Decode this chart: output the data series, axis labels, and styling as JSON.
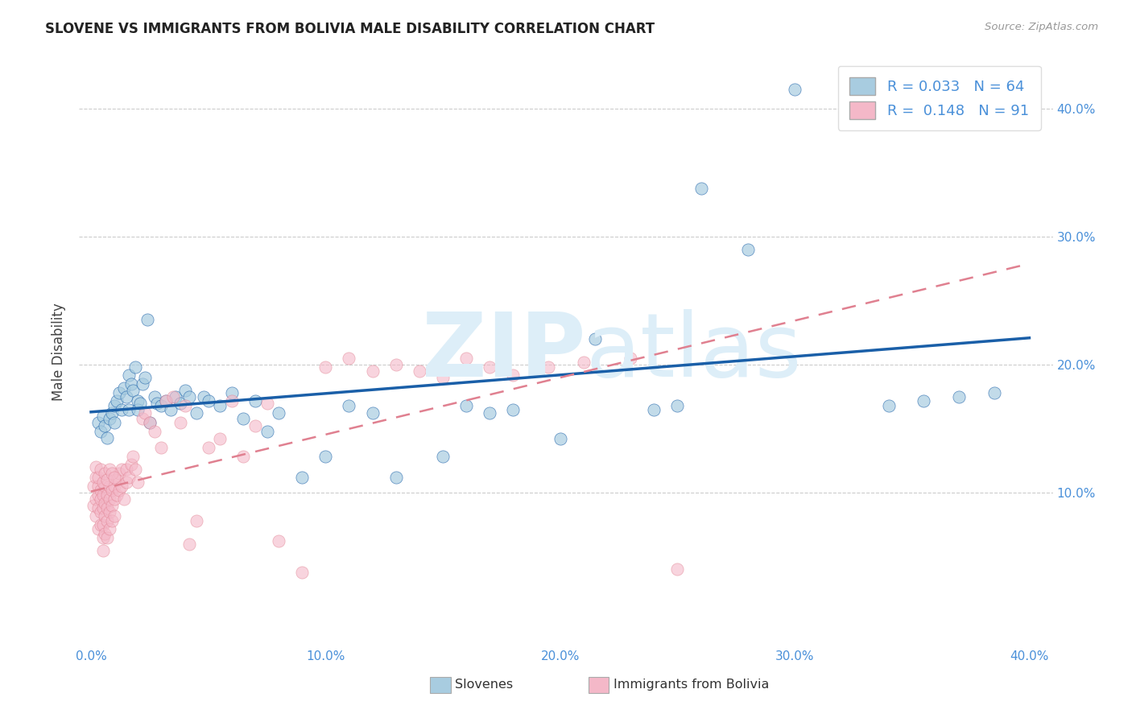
{
  "title": "SLOVENE VS IMMIGRANTS FROM BOLIVIA MALE DISABILITY CORRELATION CHART",
  "source": "Source: ZipAtlas.com",
  "ylabel": "Male Disability",
  "xlim": [
    -0.005,
    0.41
  ],
  "ylim": [
    -0.02,
    0.44
  ],
  "x_ticks": [
    0.0,
    0.1,
    0.2,
    0.3,
    0.4
  ],
  "y_ticks": [
    0.1,
    0.2,
    0.3,
    0.4
  ],
  "x_tick_labels": [
    "0.0%",
    "10.0%",
    "20.0%",
    "30.0%",
    "40.0%"
  ],
  "y_tick_labels": [
    "10.0%",
    "20.0%",
    "30.0%",
    "40.0%"
  ],
  "R_slovene": 0.033,
  "N_slovene": 64,
  "R_bolivia": 0.148,
  "N_bolivia": 91,
  "color_slovene": "#a8cce0",
  "color_bolivia": "#f4b8c8",
  "color_slovene_line": "#1a5fa8",
  "color_bolivia_line": "#e08090",
  "slovene_x": [
    0.003,
    0.004,
    0.005,
    0.006,
    0.007,
    0.008,
    0.009,
    0.01,
    0.01,
    0.011,
    0.012,
    0.013,
    0.014,
    0.015,
    0.016,
    0.016,
    0.017,
    0.018,
    0.019,
    0.02,
    0.02,
    0.021,
    0.022,
    0.023,
    0.024,
    0.025,
    0.027,
    0.028,
    0.03,
    0.032,
    0.034,
    0.036,
    0.038,
    0.04,
    0.042,
    0.045,
    0.048,
    0.05,
    0.055,
    0.06,
    0.065,
    0.07,
    0.075,
    0.08,
    0.09,
    0.1,
    0.11,
    0.12,
    0.13,
    0.15,
    0.16,
    0.17,
    0.18,
    0.2,
    0.24,
    0.26,
    0.28,
    0.3,
    0.34,
    0.355,
    0.37,
    0.385,
    0.215,
    0.25
  ],
  "slovene_y": [
    0.155,
    0.148,
    0.16,
    0.152,
    0.143,
    0.158,
    0.162,
    0.155,
    0.168,
    0.172,
    0.178,
    0.165,
    0.182,
    0.175,
    0.165,
    0.192,
    0.185,
    0.18,
    0.198,
    0.172,
    0.165,
    0.17,
    0.185,
    0.19,
    0.235,
    0.155,
    0.175,
    0.17,
    0.168,
    0.172,
    0.165,
    0.175,
    0.17,
    0.18,
    0.175,
    0.162,
    0.175,
    0.172,
    0.168,
    0.178,
    0.158,
    0.172,
    0.148,
    0.162,
    0.112,
    0.128,
    0.168,
    0.162,
    0.112,
    0.128,
    0.168,
    0.162,
    0.165,
    0.142,
    0.165,
    0.338,
    0.29,
    0.415,
    0.168,
    0.172,
    0.175,
    0.178,
    0.22,
    0.168
  ],
  "bolivia_x": [
    0.001,
    0.001,
    0.002,
    0.002,
    0.002,
    0.003,
    0.003,
    0.003,
    0.003,
    0.004,
    0.004,
    0.004,
    0.004,
    0.005,
    0.005,
    0.005,
    0.005,
    0.005,
    0.006,
    0.006,
    0.006,
    0.006,
    0.007,
    0.007,
    0.007,
    0.007,
    0.008,
    0.008,
    0.008,
    0.008,
    0.009,
    0.009,
    0.009,
    0.01,
    0.01,
    0.01,
    0.011,
    0.011,
    0.012,
    0.012,
    0.013,
    0.013,
    0.014,
    0.015,
    0.015,
    0.016,
    0.017,
    0.018,
    0.019,
    0.02,
    0.022,
    0.023,
    0.025,
    0.027,
    0.03,
    0.032,
    0.035,
    0.038,
    0.04,
    0.042,
    0.045,
    0.05,
    0.055,
    0.06,
    0.065,
    0.07,
    0.075,
    0.08,
    0.09,
    0.1,
    0.11,
    0.12,
    0.13,
    0.14,
    0.15,
    0.16,
    0.17,
    0.18,
    0.195,
    0.21,
    0.002,
    0.003,
    0.004,
    0.005,
    0.006,
    0.007,
    0.008,
    0.009,
    0.01,
    0.23,
    0.25
  ],
  "bolivia_y": [
    0.105,
    0.09,
    0.112,
    0.095,
    0.082,
    0.098,
    0.105,
    0.088,
    0.072,
    0.102,
    0.095,
    0.085,
    0.075,
    0.098,
    0.088,
    0.075,
    0.065,
    0.055,
    0.105,
    0.092,
    0.082,
    0.068,
    0.098,
    0.088,
    0.078,
    0.065,
    0.105,
    0.095,
    0.085,
    0.072,
    0.102,
    0.09,
    0.078,
    0.105,
    0.095,
    0.082,
    0.11,
    0.098,
    0.115,
    0.102,
    0.118,
    0.105,
    0.095,
    0.108,
    0.118,
    0.112,
    0.122,
    0.128,
    0.118,
    0.108,
    0.158,
    0.162,
    0.155,
    0.148,
    0.135,
    0.172,
    0.175,
    0.155,
    0.168,
    0.06,
    0.078,
    0.135,
    0.142,
    0.172,
    0.128,
    0.152,
    0.17,
    0.062,
    0.038,
    0.198,
    0.205,
    0.195,
    0.2,
    0.195,
    0.19,
    0.205,
    0.198,
    0.192,
    0.198,
    0.202,
    0.12,
    0.112,
    0.118,
    0.108,
    0.115,
    0.11,
    0.118,
    0.115,
    0.112,
    0.205,
    0.04
  ]
}
